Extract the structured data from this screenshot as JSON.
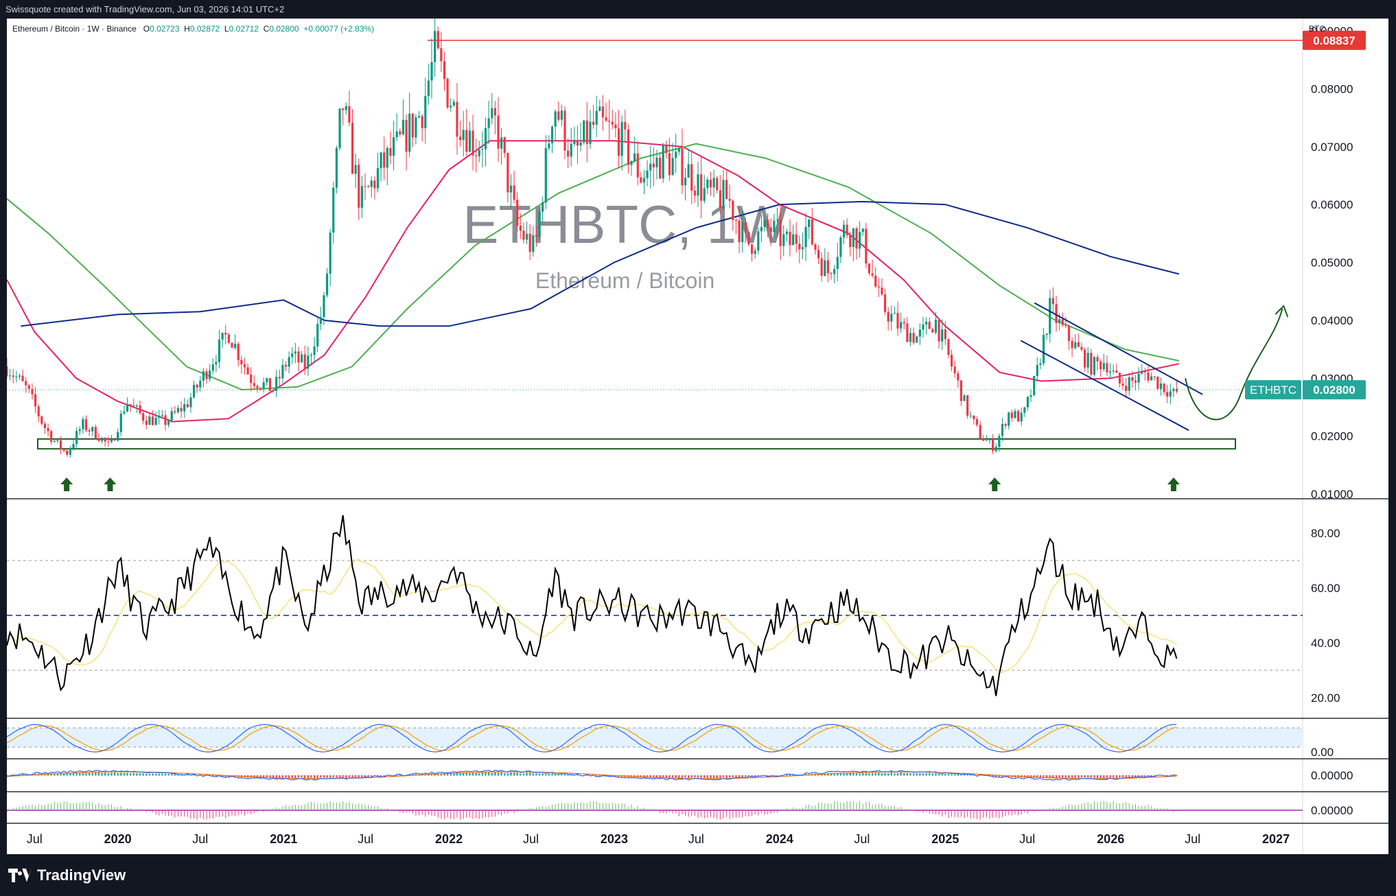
{
  "header": {
    "caption": "Swissquote created with TradingView.com, Jun 03, 2026 14:01 UTC+2"
  },
  "legend": {
    "symbol": "Ethereum / Bitcoin · 1W · Binance",
    "open_label": "O",
    "open": "0.02723",
    "high_label": "H",
    "high": "0.02872",
    "low_label": "L",
    "low": "0.02712",
    "close_label": "C",
    "close": "0.02800",
    "change": "+0.00077 (+2.83%)"
  },
  "watermark": {
    "ticker": "ETHBTC, 1W",
    "name": "Ethereum / Bitcoin"
  },
  "price_axis": {
    "unit": "BTC",
    "ticks": [
      "0.09000",
      "0.08000",
      "0.07000",
      "0.06000",
      "0.05000",
      "0.04000",
      "0.03000",
      "0.02000",
      "0.01000"
    ]
  },
  "badges": {
    "resistance": "0.08837",
    "symbol_label": "ETHBTC",
    "last_price": "0.02800"
  },
  "rsi_axis": {
    "ticks": [
      "80.00",
      "60.00",
      "40.00",
      "20.00"
    ]
  },
  "stoch_axis": {
    "ticks": [
      "0.00"
    ]
  },
  "macd_axis": {
    "ticks": [
      "0.00000"
    ]
  },
  "osc_axis": {
    "ticks": [
      "0.00000"
    ]
  },
  "time_axis": {
    "labels": [
      "Jul",
      "2020",
      "Jul",
      "2021",
      "Jul",
      "2022",
      "Jul",
      "2023",
      "Jul",
      "2024",
      "Jul",
      "2025",
      "Jul",
      "2026",
      "Jul",
      "2027"
    ]
  },
  "footer": {
    "brand": "TradingView"
  },
  "colors": {
    "up": "#089981",
    "down": "#f23645",
    "ma_red": "#e91e63",
    "ma_green": "#4caf50",
    "ma_blue": "#0d2a8a",
    "support_box": "#1b5e20",
    "arrow": "#1b5e20",
    "channel": "#0d2a8a",
    "resistance": "#e53935",
    "badge_teal": "#26a69a",
    "rsi": "#000000",
    "rsi_ma": "#f5e27a"
  },
  "chart_data": {
    "type": "candlestick",
    "title": "ETHBTC, 1W",
    "subtitle": "Ethereum / Bitcoin",
    "ylabel": "BTC",
    "ylim": [
      0.01,
      0.09
    ],
    "grid": false,
    "x_range": [
      "2019-05",
      "2027-03"
    ],
    "close_path": [
      [
        "2019-05-01",
        0.032
      ],
      [
        "2019-06-15",
        0.028
      ],
      [
        "2019-07-20",
        0.022
      ],
      [
        "2019-08-15",
        0.019
      ],
      [
        "2019-09-10",
        0.017
      ],
      [
        "2019-10-15",
        0.022
      ],
      [
        "2019-11-20",
        0.02
      ],
      [
        "2019-12-15",
        0.018
      ],
      [
        "2020-01-20",
        0.026
      ],
      [
        "2020-03-01",
        0.023
      ],
      [
        "2020-04-15",
        0.0225
      ],
      [
        "2020-06-01",
        0.0255
      ],
      [
        "2020-07-20",
        0.032
      ],
      [
        "2020-09-01",
        0.038
      ],
      [
        "2020-10-20",
        0.03
      ],
      [
        "2020-12-10",
        0.028
      ],
      [
        "2021-01-15",
        0.034
      ],
      [
        "2021-02-20",
        0.032
      ],
      [
        "2021-04-01",
        0.043
      ],
      [
        "2021-05-10",
        0.078
      ],
      [
        "2021-06-20",
        0.06
      ],
      [
        "2021-08-01",
        0.066
      ],
      [
        "2021-09-10",
        0.07
      ],
      [
        "2021-11-01",
        0.076
      ],
      [
        "2021-12-01",
        0.086
      ],
      [
        "2022-01-15",
        0.076
      ],
      [
        "2022-03-01",
        0.07
      ],
      [
        "2022-04-15",
        0.074
      ],
      [
        "2022-06-01",
        0.056
      ],
      [
        "2022-07-10",
        0.052
      ],
      [
        "2022-08-20",
        0.078
      ],
      [
        "2022-10-01",
        0.068
      ],
      [
        "2022-11-20",
        0.074
      ],
      [
        "2023-01-10",
        0.072
      ],
      [
        "2023-03-01",
        0.065
      ],
      [
        "2023-04-20",
        0.068
      ],
      [
        "2023-06-10",
        0.066
      ],
      [
        "2023-07-20",
        0.062
      ],
      [
        "2023-09-10",
        0.061
      ],
      [
        "2023-10-20",
        0.053
      ],
      [
        "2023-12-10",
        0.056
      ],
      [
        "2024-01-20",
        0.053
      ],
      [
        "2024-03-01",
        0.056
      ],
      [
        "2024-04-15",
        0.048
      ],
      [
        "2024-05-25",
        0.056
      ],
      [
        "2024-07-01",
        0.054
      ],
      [
        "2024-08-10",
        0.043
      ],
      [
        "2024-09-20",
        0.039
      ],
      [
        "2024-11-01",
        0.037
      ],
      [
        "2024-12-10",
        0.04
      ],
      [
        "2025-01-20",
        0.031
      ],
      [
        "2025-02-20",
        0.024
      ],
      [
        "2025-03-20",
        0.02
      ],
      [
        "2025-04-20",
        0.018
      ],
      [
        "2025-05-20",
        0.024
      ],
      [
        "2025-06-20",
        0.023
      ],
      [
        "2025-07-20",
        0.03
      ],
      [
        "2025-08-20",
        0.042
      ],
      [
        "2025-09-20",
        0.038
      ],
      [
        "2025-10-20",
        0.035
      ],
      [
        "2025-11-20",
        0.032
      ],
      [
        "2025-12-20",
        0.033
      ],
      [
        "2026-01-20",
        0.029
      ],
      [
        "2026-02-20",
        0.0295
      ],
      [
        "2026-03-20",
        0.031
      ],
      [
        "2026-04-20",
        0.029
      ],
      [
        "2026-05-20",
        0.0272
      ],
      [
        "2026-06-01",
        0.028
      ]
    ],
    "moving_averages": [
      {
        "color": "#e91e63",
        "points": [
          [
            "2019-05-01",
            0.047
          ],
          [
            "2019-07-01",
            0.038
          ],
          [
            "2019-10-01",
            0.03
          ],
          [
            "2020-01-01",
            0.026
          ],
          [
            "2020-05-01",
            0.0225
          ],
          [
            "2020-09-01",
            0.023
          ],
          [
            "2021-01-01",
            0.029
          ],
          [
            "2021-04-01",
            0.034
          ],
          [
            "2021-07-01",
            0.044
          ],
          [
            "2021-10-01",
            0.056
          ],
          [
            "2022-01-01",
            0.066
          ],
          [
            "2022-04-01",
            0.071
          ],
          [
            "2022-08-01",
            0.071
          ],
          [
            "2023-01-01",
            0.071
          ],
          [
            "2023-06-01",
            0.07
          ],
          [
            "2023-10-01",
            0.065
          ],
          [
            "2024-01-01",
            0.06
          ],
          [
            "2024-06-01",
            0.055
          ],
          [
            "2024-10-01",
            0.047
          ],
          [
            "2025-01-01",
            0.039
          ],
          [
            "2025-05-01",
            0.031
          ],
          [
            "2025-08-01",
            0.0295
          ],
          [
            "2026-01-01",
            0.03
          ],
          [
            "2026-06-01",
            0.0325
          ]
        ]
      },
      {
        "color": "#4caf50",
        "points": [
          [
            "2019-05-01",
            0.061
          ],
          [
            "2019-08-01",
            0.055
          ],
          [
            "2019-12-01",
            0.046
          ],
          [
            "2020-03-01",
            0.039
          ],
          [
            "2020-06-01",
            0.032
          ],
          [
            "2020-10-01",
            0.028
          ],
          [
            "2021-02-01",
            0.0285
          ],
          [
            "2021-06-01",
            0.032
          ],
          [
            "2021-10-01",
            0.042
          ],
          [
            "2022-03-01",
            0.053
          ],
          [
            "2022-09-01",
            0.062
          ],
          [
            "2023-03-01",
            0.068
          ],
          [
            "2023-07-01",
            0.0705
          ],
          [
            "2023-12-01",
            0.068
          ],
          [
            "2024-06-01",
            0.063
          ],
          [
            "2024-12-01",
            0.055
          ],
          [
            "2025-05-01",
            0.046
          ],
          [
            "2025-09-01",
            0.04
          ],
          [
            "2026-02-01",
            0.035
          ],
          [
            "2026-06-01",
            0.033
          ]
        ]
      },
      {
        "color": "#0d2a8a",
        "points": [
          [
            "2019-06-01",
            0.039
          ],
          [
            "2020-01-01",
            0.041
          ],
          [
            "2020-07-01",
            0.0415
          ],
          [
            "2021-01-01",
            0.0435
          ],
          [
            "2021-04-01",
            0.04
          ],
          [
            "2021-08-01",
            0.039
          ],
          [
            "2022-01-01",
            0.039
          ],
          [
            "2022-07-01",
            0.042
          ],
          [
            "2023-01-01",
            0.05
          ],
          [
            "2023-07-01",
            0.056
          ],
          [
            "2024-01-01",
            0.06
          ],
          [
            "2024-07-01",
            0.0605
          ],
          [
            "2025-01-01",
            0.06
          ],
          [
            "2025-07-01",
            0.056
          ],
          [
            "2026-01-01",
            0.051
          ],
          [
            "2026-06-01",
            0.048
          ]
        ]
      }
    ],
    "resistance_level": 0.08837,
    "support_zone": [
      0.0178,
      0.0195
    ],
    "rsi": {
      "ylim": [
        15,
        90
      ],
      "levels": [
        70,
        50,
        30
      ],
      "points": [
        [
          "2019-05-01",
          45
        ],
        [
          "2019-07-01",
          40
        ],
        [
          "2019-09-01",
          27
        ],
        [
          "2019-11-01",
          42
        ],
        [
          "2020-01-01",
          68
        ],
        [
          "2020-03-01",
          45
        ],
        [
          "2020-05-01",
          55
        ],
        [
          "2020-07-20",
          75
        ],
        [
          "2020-09-01",
          60
        ],
        [
          "2020-11-01",
          42
        ],
        [
          "2021-01-01",
          70
        ],
        [
          "2021-02-20",
          45
        ],
        [
          "2021-04-01",
          64
        ],
        [
          "2021-05-10",
          84
        ],
        [
          "2021-06-20",
          55
        ],
        [
          "2021-09-01",
          60
        ],
        [
          "2021-12-01",
          58
        ],
        [
          "2022-01-15",
          68
        ],
        [
          "2022-03-01",
          52
        ],
        [
          "2022-06-01",
          45
        ],
        [
          "2022-07-10",
          32
        ],
        [
          "2022-08-20",
          65
        ],
        [
          "2022-10-01",
          50
        ],
        [
          "2023-01-01",
          55
        ],
        [
          "2023-04-01",
          48
        ],
        [
          "2023-06-01",
          52
        ],
        [
          "2023-09-01",
          45
        ],
        [
          "2023-11-01",
          28
        ],
        [
          "2024-01-01",
          52
        ],
        [
          "2024-03-01",
          45
        ],
        [
          "2024-05-25",
          55
        ],
        [
          "2024-07-01",
          50
        ],
        [
          "2024-09-01",
          35
        ],
        [
          "2024-11-01",
          32
        ],
        [
          "2025-01-01",
          42
        ],
        [
          "2025-03-01",
          30
        ],
        [
          "2025-04-20",
          24
        ],
        [
          "2025-06-01",
          45
        ],
        [
          "2025-07-20",
          62
        ],
        [
          "2025-08-20",
          75
        ],
        [
          "2025-10-01",
          58
        ],
        [
          "2025-12-01",
          55
        ],
        [
          "2026-01-20",
          38
        ],
        [
          "2026-03-20",
          47
        ],
        [
          "2026-05-10",
          33
        ],
        [
          "2026-06-01",
          38
        ]
      ]
    },
    "annotations": [
      {
        "type": "arrow_up",
        "date": "2019-09-10"
      },
      {
        "type": "arrow_up",
        "date": "2019-12-15"
      },
      {
        "type": "arrow_up",
        "date": "2025-04-20"
      },
      {
        "type": "arrow_up",
        "date": "2026-05-20"
      },
      {
        "type": "descending_channel",
        "from": [
          "2025-08-01",
          0.043,
          0.0365
        ],
        "to": [
          "2026-06-15",
          0.0272,
          0.021
        ]
      },
      {
        "type": "projection_curve",
        "from": [
          "2026-06-15",
          0.03
        ],
        "to": [
          "2027-01-15",
          0.042
        ]
      }
    ]
  }
}
